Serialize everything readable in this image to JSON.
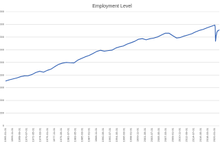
{
  "chart_data": {
    "type": "line",
    "title": "Employment Level",
    "series": [
      {
        "name": "Employment Level",
        "color": "#2f5fb3",
        "x": [
          "1965-01-01",
          "1966-01-01",
          "1967-01-01",
          "1968-01-01",
          "1969-01-01",
          "1970-01-01",
          "1971-01-01",
          "1972-01-01",
          "1973-01-01",
          "1974-01-01",
          "1975-01-01",
          "1976-01-01",
          "1977-01-01",
          "1978-01-01",
          "1979-01-01",
          "1980-01-01",
          "1981-01-01",
          "1982-01-01",
          "1983-01-01",
          "1984-01-01",
          "1985-01-01",
          "1986-01-01",
          "1987-01-01",
          "1988-01-01",
          "1989-01-01",
          "1990-01-01",
          "1991-01-01",
          "1992-01-01",
          "1993-01-01",
          "1994-01-01",
          "1995-01-01",
          "1996-01-01",
          "1997-01-01",
          "1998-01-01",
          "1999-01-01",
          "2000-01-01",
          "2001-01-01",
          "2002-01-01",
          "2003-01-01",
          "2004-01-01",
          "2005-01-01",
          "2006-01-01",
          "2007-01-01",
          "2008-01-01",
          "2009-01-01",
          "2010-01-01",
          "2011-01-01",
          "2012-01-01",
          "2013-01-01",
          "2014-01-01",
          "2015-01-01",
          "2016-01-01",
          "2017-01-01",
          "2018-01-01",
          "2019-01-01",
          "2020-01-01",
          "2020-02-01",
          "2020-03-01",
          "2020-04-01",
          "2020-05-01",
          "2020-06-01",
          "2020-07-01",
          "2020-08-01",
          "2020-09-01",
          "2020-10-01",
          "2020-11-01",
          "2020-12-01",
          "2021-01-01",
          "2021-04-01"
        ],
        "values": [
          70600,
          72500,
          74000,
          75500,
          77600,
          78800,
          79000,
          81000,
          84200,
          86000,
          84600,
          87500,
          89500,
          93500,
          97000,
          98900,
          100000,
          99500,
          99200,
          103500,
          106300,
          108900,
          111000,
          114000,
          117300,
          119100,
          117700,
          118600,
          119300,
          122600,
          124600,
          125900,
          128900,
          131000,
          133300,
          136600,
          137500,
          135700,
          137400,
          138400,
          140200,
          143100,
          146000,
          146100,
          142200,
          138500,
          139300,
          141600,
          143300,
          145200,
          148100,
          150500,
          152100,
          154500,
          156700,
          158700,
          158800,
          155800,
          133400,
          137200,
          142600,
          143500,
          147200,
          147600,
          149700,
          149800,
          149800,
          150000,
          151500
        ]
      }
    ],
    "xticks": [
      "1965-01-01",
      "1966-11-01",
      "1968-09-01",
      "1970-07-01",
      "1972-05-01",
      "1974-03-01",
      "1976-01-01",
      "1977-11-01",
      "1979-09-01",
      "1981-07-01",
      "1983-05-01",
      "1985-03-01",
      "1987-01-01",
      "1988-11-01",
      "1990-09-01",
      "1992-07-01",
      "1994-05-01",
      "1996-03-01",
      "1998-01-01",
      "1999-11-01",
      "2001-09-01",
      "2003-07-01",
      "2005-05-01",
      "2007-03-01",
      "2009-01-01",
      "2010-11-01",
      "2012-09-01",
      "2014-07-01",
      "2016-05-01",
      "2018-03-01",
      "2020-01-01"
    ],
    "ylim": [
      0,
      180000
    ],
    "yticks": [
      0,
      20000,
      40000,
      60000,
      80000,
      100000,
      120000,
      140000,
      160000,
      180000
    ],
    "grid": true
  }
}
